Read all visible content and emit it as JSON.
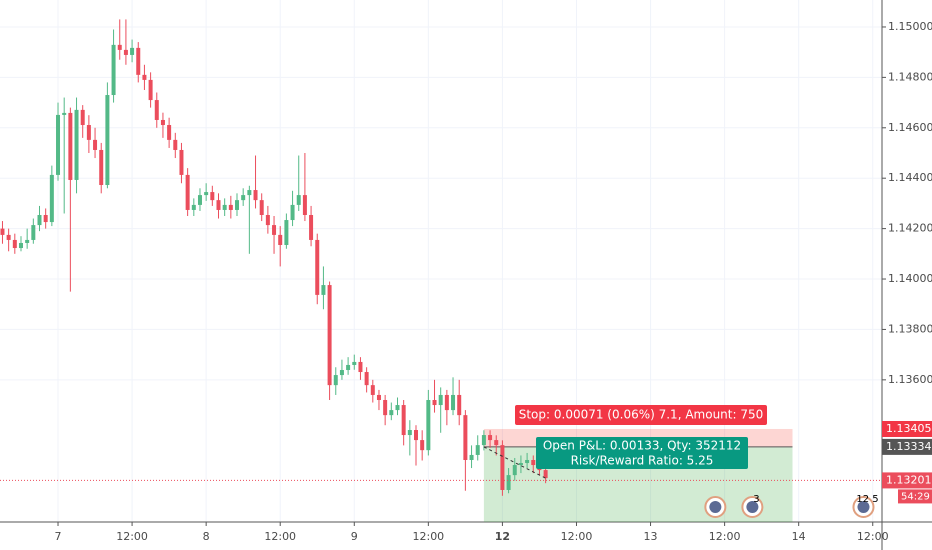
{
  "chart_data": {
    "type": "candlestick",
    "up_color": "#53b987",
    "down_color": "#eb4d5c",
    "grid": true,
    "x": [
      -9,
      -8,
      -7,
      -6,
      -5,
      -4,
      -3,
      -2,
      -1,
      0,
      1,
      2,
      3,
      4,
      5,
      6,
      7,
      8,
      9,
      10,
      11,
      12,
      13,
      14,
      15,
      16,
      17,
      18,
      19,
      20,
      21,
      22,
      23,
      24,
      25,
      26,
      27,
      28,
      29,
      30,
      31,
      32,
      33,
      34,
      35,
      36,
      37,
      38,
      39,
      40,
      41,
      42,
      43,
      44,
      45,
      46,
      47,
      48,
      49,
      50,
      51,
      52,
      53,
      54,
      55,
      56,
      57,
      58,
      59,
      60,
      61,
      62,
      63,
      64,
      65,
      66,
      67,
      68,
      69,
      70,
      71,
      72,
      73,
      74,
      75,
      76,
      77,
      78,
      79
    ],
    "open": [
      1.142,
      1.14175,
      1.14155,
      1.14123,
      1.14143,
      1.14155,
      1.14214,
      1.14254,
      1.14226,
      1.14413,
      1.14651,
      1.14659,
      1.14393,
      1.14671,
      1.14611,
      1.14552,
      1.14512,
      1.14373,
      1.1473,
      1.14929,
      1.14909,
      1.14889,
      1.14917,
      1.1481,
      1.1479,
      1.1471,
      1.14631,
      1.14611,
      1.14552,
      1.14512,
      1.14413,
      1.14274,
      1.14294,
      1.14333,
      1.14345,
      1.14313,
      1.14274,
      1.14294,
      1.14274,
      1.14313,
      1.14333,
      1.14353,
      1.14313,
      1.14254,
      1.14214,
      1.14175,
      1.14135,
      1.14234,
      1.14294,
      1.14333,
      1.14254,
      1.14155,
      1.13937,
      1.13976,
      1.13579,
      1.13619,
      1.13639,
      1.13659,
      1.13671,
      1.13631,
      1.13579,
      1.1354,
      1.1352,
      1.1346,
      1.1348,
      1.135,
      1.13381,
      1.13401,
      1.13361,
      1.13321,
      1.1352,
      1.135,
      1.1354,
      1.1348,
      1.1354,
      1.1346,
      1.13282,
      1.13302,
      1.13341,
      1.13381,
      1.13361,
      1.13341,
      1.13163,
      1.13222,
      1.13262,
      1.1327,
      1.13282,
      1.13262,
      1.13242
    ],
    "high": [
      1.1423,
      1.142,
      1.1418,
      1.1417,
      1.142,
      1.1424,
      1.1429,
      1.1428,
      1.1445,
      1.147,
      1.1472,
      1.1468,
      1.1472,
      1.1469,
      1.1465,
      1.146,
      1.1454,
      1.1478,
      1.1499,
      1.1503,
      1.1503,
      1.1495,
      1.1494,
      1.1485,
      1.1482,
      1.1474,
      1.1466,
      1.1464,
      1.1458,
      1.1454,
      1.1444,
      1.1432,
      1.1436,
      1.1438,
      1.1437,
      1.1434,
      1.1432,
      1.1433,
      1.1434,
      1.1436,
      1.1437,
      1.1449,
      1.1434,
      1.1429,
      1.1425,
      1.1421,
      1.1426,
      1.1435,
      1.1449,
      1.145,
      1.1429,
      1.1418,
      1.1405,
      1.1399,
      1.1365,
      1.1368,
      1.1369,
      1.137,
      1.1369,
      1.1365,
      1.136,
      1.1356,
      1.1354,
      1.1351,
      1.1353,
      1.1352,
      1.1344,
      1.1342,
      1.134,
      1.1356,
      1.136,
      1.1357,
      1.1356,
      1.1361,
      1.136,
      1.1348,
      1.1334,
      1.1338,
      1.134,
      1.134,
      1.1338,
      1.1336,
      1.1325,
      1.1329,
      1.133,
      1.1331,
      1.133,
      1.1329,
      1.1327
    ],
    "low": [
      1.1414,
      1.1411,
      1.141,
      1.1411,
      1.1412,
      1.1414,
      1.1419,
      1.142,
      1.1421,
      1.1439,
      1.1426,
      1.1395,
      1.1434,
      1.1456,
      1.145,
      1.1448,
      1.1434,
      1.1436,
      1.147,
      1.1487,
      1.1485,
      1.1486,
      1.1478,
      1.1475,
      1.1468,
      1.146,
      1.1456,
      1.1452,
      1.1448,
      1.1438,
      1.1425,
      1.1425,
      1.1427,
      1.1431,
      1.1429,
      1.1424,
      1.1425,
      1.1424,
      1.1425,
      1.1429,
      1.141,
      1.1428,
      1.1423,
      1.1418,
      1.141,
      1.1405,
      1.1412,
      1.1421,
      1.1427,
      1.1423,
      1.1413,
      1.139,
      1.1388,
      1.1352,
      1.1354,
      1.136,
      1.1362,
      1.1364,
      1.136,
      1.1355,
      1.1351,
      1.1348,
      1.1342,
      1.1344,
      1.1346,
      1.1334,
      1.133,
      1.1326,
      1.1328,
      1.133,
      1.1347,
      1.1339,
      1.1342,
      1.1346,
      1.1342,
      1.1316,
      1.1325,
      1.1328,
      1.1332,
      1.1333,
      1.133,
      1.1314,
      1.1315,
      1.132,
      1.1323,
      1.1325,
      1.1323,
      1.1322,
      1.1319
    ],
    "close": [
      1.14175,
      1.14155,
      1.14123,
      1.14143,
      1.14155,
      1.14214,
      1.14254,
      1.14226,
      1.14413,
      1.14651,
      1.14659,
      1.14393,
      1.14671,
      1.14611,
      1.14552,
      1.14512,
      1.14373,
      1.1473,
      1.14929,
      1.14909,
      1.14889,
      1.14917,
      1.1481,
      1.1479,
      1.1471,
      1.14631,
      1.14611,
      1.14552,
      1.14512,
      1.14413,
      1.14274,
      1.14294,
      1.14333,
      1.14345,
      1.14313,
      1.14274,
      1.14294,
      1.14274,
      1.14313,
      1.14333,
      1.14353,
      1.14313,
      1.14254,
      1.14214,
      1.14175,
      1.14135,
      1.14234,
      1.14294,
      1.14333,
      1.14254,
      1.14155,
      1.13937,
      1.13976,
      1.13579,
      1.13619,
      1.13639,
      1.13659,
      1.13671,
      1.13631,
      1.13579,
      1.1354,
      1.1352,
      1.1346,
      1.1348,
      1.135,
      1.13381,
      1.13401,
      1.13361,
      1.13321,
      1.1352,
      1.135,
      1.1354,
      1.1348,
      1.1354,
      1.1346,
      1.13282,
      1.13302,
      1.13341,
      1.13381,
      1.13361,
      1.13341,
      1.13163,
      1.13222,
      1.13262,
      1.1327,
      1.13282,
      1.13262,
      1.13242,
      1.1321
    ],
    "xlim": [
      -9.4,
      133.5
    ],
    "ylim": [
      1.13036,
      1.15107
    ],
    "yticks": [
      {
        "value": 1.136,
        "label": "1.13600"
      },
      {
        "value": 1.138,
        "label": "1.13800"
      },
      {
        "value": 1.14,
        "label": "1.14000"
      },
      {
        "value": 1.142,
        "label": "1.14200"
      },
      {
        "value": 1.144,
        "label": "1.14400"
      },
      {
        "value": 1.146,
        "label": "1.14600"
      },
      {
        "value": 1.148,
        "label": "1.14800"
      },
      {
        "value": 1.15,
        "label": "1.15000"
      }
    ],
    "xticks": [
      {
        "value": 0,
        "label": "7"
      },
      {
        "value": 12,
        "label": "12:00"
      },
      {
        "value": 24,
        "label": "8"
      },
      {
        "value": 36,
        "label": "12:00"
      },
      {
        "value": 48,
        "label": "9"
      },
      {
        "value": 60,
        "label": "12:00"
      },
      {
        "value": 72,
        "label": "12"
      },
      {
        "value": 84,
        "label": "12:00"
      },
      {
        "value": 96,
        "label": "13"
      },
      {
        "value": 108,
        "label": "12:00"
      },
      {
        "value": 120,
        "label": "14"
      },
      {
        "value": 132,
        "label": "12:00"
      }
    ],
    "position": {
      "x_start": 69,
      "x_end": 119,
      "entry": 1.13334,
      "stop": 1.13405,
      "stop_text": "Stop: 0.00071 (0.06%) 7.1, Amount: 750",
      "pnl_text": "Open P&L: 0.00133, Qty: 352112",
      "rr_text": "Risk/Reward Ratio: 5.25"
    },
    "last_price": 1.13201,
    "countdown": "54:29",
    "events": [
      {
        "x": 106.5,
        "label": ""
      },
      {
        "x": 112.5,
        "label": "3"
      },
      {
        "x": 130.5,
        "label": "12 5"
      }
    ]
  }
}
